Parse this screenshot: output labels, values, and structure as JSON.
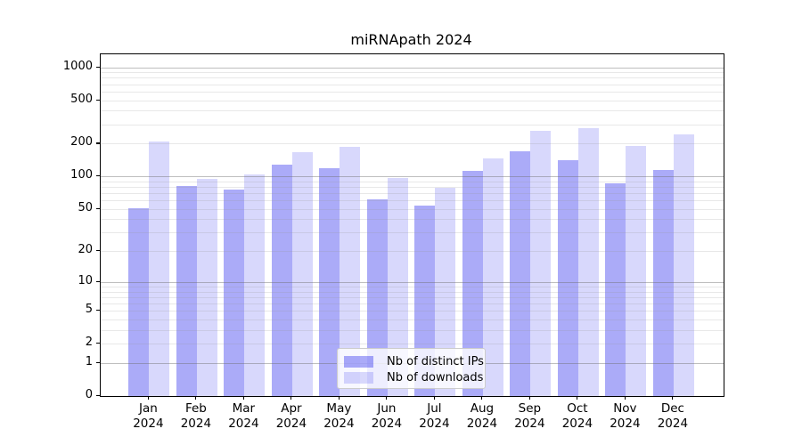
{
  "title": "miRNApath 2024",
  "chart_data": {
    "type": "bar",
    "title": "miRNApath 2024",
    "categories": [
      "Jan",
      "Feb",
      "Mar",
      "Apr",
      "May",
      "Jun",
      "Jul",
      "Aug",
      "Sep",
      "Oct",
      "Nov",
      "Dec"
    ],
    "category_year": "2024",
    "series": [
      {
        "name": "Nb of distinct IPs",
        "color": "rgba(15,15,235,0.35)",
        "values": [
          51,
          81,
          75,
          129,
          118,
          61,
          54,
          113,
          170,
          142,
          86,
          114
        ]
      },
      {
        "name": "Nb of downloads",
        "color": "rgba(15,15,235,0.16)",
        "values": [
          210,
          94,
          104,
          166,
          187,
          96,
          79,
          146,
          262,
          276,
          190,
          245
        ]
      }
    ],
    "xlabel": "",
    "ylabel": "",
    "yscale": "log1p",
    "ylim": [
      0,
      1000
    ],
    "yticks": [
      0,
      1,
      2,
      5,
      10,
      20,
      50,
      100,
      200,
      500,
      1000
    ],
    "grid": true,
    "legend_position": "lower center"
  },
  "colors": {
    "background": "#ffffff",
    "bar_ips": "rgba(15,15,235,0.35)",
    "bar_downloads": "rgba(15,15,235,0.16)",
    "grid_decade": "rgba(110,110,110,0.45)",
    "grid_minor": "rgba(150,150,150,0.22)",
    "axis": "#000000",
    "text": "#000000",
    "legend_border": "#cccccc",
    "legend_bg": "rgba(255,255,255,0.8)"
  }
}
